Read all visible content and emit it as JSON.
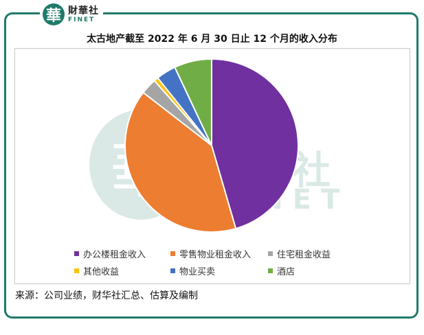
{
  "brand": {
    "mark": "華",
    "name_cn": "財華社",
    "name_en": "FINET"
  },
  "watermark": {
    "mark": "華",
    "name_cn": "財華社",
    "name_en": "FINET"
  },
  "chart_data": {
    "type": "pie",
    "title": "太古地产截至 2022 年 6 月 30 日止 12 个月的收入分布",
    "legend_position": "bottom",
    "start_angle_deg": 0,
    "direction": "clockwise",
    "slices": [
      {
        "label": "办公楼租金收入",
        "value": 45.5,
        "color": "#7030a0"
      },
      {
        "label": "零售物业租金收入",
        "value": 40.0,
        "color": "#ed7d31"
      },
      {
        "label": "住宅租金收益",
        "value": 3.0,
        "color": "#a5a5a5"
      },
      {
        "label": "其他收益",
        "value": 0.8,
        "color": "#ffc000"
      },
      {
        "label": "物业买卖",
        "value": 3.7,
        "color": "#4472c4"
      },
      {
        "label": "酒店",
        "value": 7.0,
        "color": "#70ad47"
      }
    ]
  },
  "source_note": "来源：公司业绩，财华社汇总、估算及编制"
}
